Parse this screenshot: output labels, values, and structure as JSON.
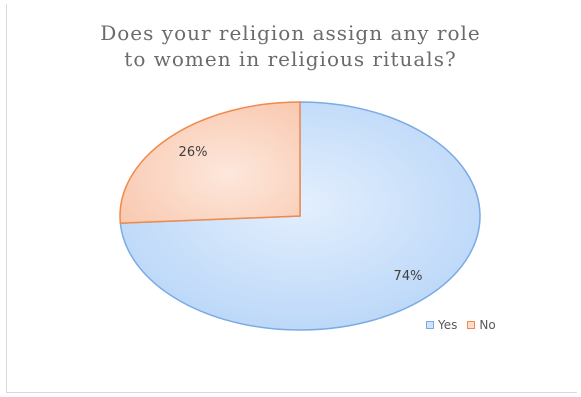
{
  "chart_data": {
    "type": "pie",
    "title_lines": [
      "Does your religion assign any role",
      "to women in religious rituals?"
    ],
    "slices": [
      {
        "label": "Yes",
        "value": 74,
        "display": "74%",
        "fill": "#cfe3fb",
        "edge": "#7aabe4"
      },
      {
        "label": "No",
        "value": 26,
        "display": "26%",
        "fill": "#fcdccb",
        "edge": "#f08a4b"
      }
    ],
    "legend_position": "bottom-right"
  }
}
